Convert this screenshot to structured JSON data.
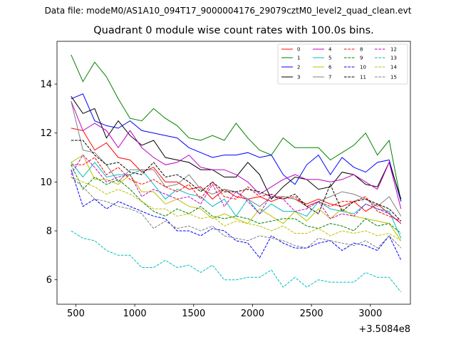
{
  "suptitle": "Data file: modeM0/AS1A10_094T17_9000004176_29079cztM0_level2_quad_clean.evt",
  "chart_data": {
    "type": "line",
    "title": "Quadrant 0 module wise count rates with 100.0s bins.",
    "xlabel": "",
    "ylabel": "",
    "x_offset_label": "+3.5084e8",
    "xlim": [
      340,
      3340
    ],
    "ylim": [
      5.0,
      15.75
    ],
    "xticks": [
      500,
      1000,
      1500,
      2000,
      2500,
      3000
    ],
    "xtick_labels": [
      "500",
      "1000",
      "1500",
      "2000",
      "2500",
      "3000"
    ],
    "yticks": [
      6,
      8,
      10,
      12,
      14
    ],
    "ytick_labels": [
      "6",
      "8",
      "10",
      "12",
      "14"
    ],
    "grid": false,
    "legend_position": "top-right",
    "x": [
      460,
      560,
      660,
      760,
      860,
      960,
      1060,
      1160,
      1260,
      1360,
      1460,
      1560,
      1660,
      1760,
      1860,
      1960,
      2060,
      2160,
      2260,
      2360,
      2460,
      2560,
      2660,
      2760,
      2860,
      2960,
      3060,
      3160,
      3260
    ],
    "series": [
      {
        "name": "0",
        "color": "#ff0000",
        "dash": "solid",
        "values": [
          12.2,
          12.1,
          11.3,
          11.6,
          11.0,
          10.9,
          10.4,
          10.6,
          10.0,
          10.0,
          9.7,
          9.8,
          9.3,
          9.7,
          9.4,
          9.3,
          9.4,
          9.2,
          9.4,
          9.3,
          9.1,
          9.3,
          9.1,
          9.0,
          9.2,
          8.8,
          9.1,
          8.7,
          8.3
        ]
      },
      {
        "name": "1",
        "color": "#008000",
        "dash": "solid",
        "values": [
          15.2,
          14.1,
          14.9,
          14.3,
          13.4,
          12.6,
          12.5,
          13.0,
          12.6,
          12.3,
          11.8,
          11.7,
          11.9,
          11.7,
          12.4,
          11.8,
          11.3,
          11.1,
          11.8,
          11.4,
          11.4,
          11.4,
          10.9,
          11.2,
          11.5,
          12.0,
          11.1,
          11.7,
          9.2
        ]
      },
      {
        "name": "2",
        "color": "#0000ff",
        "dash": "solid",
        "values": [
          13.4,
          13.6,
          12.5,
          12.3,
          12.2,
          12.5,
          12.1,
          12.0,
          11.9,
          11.8,
          11.4,
          11.2,
          11.0,
          11.1,
          11.1,
          11.2,
          11.0,
          11.1,
          10.3,
          9.9,
          10.7,
          11.1,
          10.3,
          11.0,
          10.6,
          10.4,
          10.8,
          10.9,
          9.2
        ]
      },
      {
        "name": "3",
        "color": "#000000",
        "dash": "solid",
        "values": [
          13.5,
          12.8,
          13.0,
          11.8,
          12.5,
          11.9,
          11.5,
          11.7,
          11.0,
          10.9,
          10.8,
          10.5,
          10.5,
          10.2,
          10.2,
          10.8,
          10.3,
          9.3,
          9.8,
          10.2,
          10.1,
          9.7,
          9.8,
          10.4,
          10.3,
          9.9,
          9.8,
          10.8,
          9.3
        ]
      },
      {
        "name": "4",
        "color": "#bf00bf",
        "dash": "solid",
        "values": [
          13.3,
          12.1,
          12.4,
          12.1,
          11.4,
          12.1,
          11.4,
          11.0,
          10.7,
          10.8,
          11.1,
          10.6,
          10.5,
          10.5,
          10.3,
          10.0,
          9.5,
          9.8,
          10.1,
          10.3,
          10.1,
          10.1,
          10.0,
          10.1,
          10.3,
          10.0,
          9.7,
          10.8,
          8.9
        ]
      },
      {
        "name": "5",
        "color": "#00bfbf",
        "dash": "solid",
        "values": [
          10.8,
          10.2,
          10.8,
          10.2,
          10.3,
          10.3,
          10.5,
          9.9,
          9.3,
          9.7,
          9.5,
          9.4,
          9.0,
          9.3,
          8.6,
          9.3,
          8.7,
          9.1,
          8.8,
          8.8,
          8.6,
          9.2,
          8.9,
          8.8,
          8.7,
          9.1,
          8.9,
          8.8,
          7.7
        ]
      },
      {
        "name": "6",
        "color": "#bfbf00",
        "dash": "solid",
        "values": [
          10.8,
          11.1,
          10.1,
          10.1,
          9.9,
          10.3,
          9.6,
          9.6,
          9.1,
          9.3,
          9.0,
          8.9,
          8.5,
          8.7,
          8.5,
          8.3,
          8.9,
          8.6,
          8.3,
          8.8,
          8.4,
          8.9,
          8.5,
          8.9,
          8.6,
          8.5,
          8.4,
          8.3,
          7.6
        ]
      },
      {
        "name": "7",
        "color": "#808080",
        "dash": "solid",
        "values": [
          13.3,
          11.3,
          11.2,
          10.7,
          10.0,
          10.5,
          10.5,
          10.5,
          9.8,
          9.9,
          10.3,
          9.7,
          9.5,
          9.7,
          9.6,
          9.3,
          9.0,
          9.4,
          9.4,
          9.3,
          9.0,
          9.2,
          9.4,
          9.6,
          9.5,
          9.3,
          9.0,
          9.4,
          8.6
        ]
      },
      {
        "name": "8",
        "color": "#ff0000",
        "dash": "dashed",
        "values": [
          10.7,
          10.7,
          11.0,
          10.3,
          10.6,
          10.1,
          9.9,
          10.1,
          9.8,
          9.6,
          9.9,
          9.3,
          10.0,
          9.4,
          9.3,
          9.8,
          9.4,
          9.5,
          9.3,
          9.4,
          9.0,
          9.2,
          9.0,
          9.2,
          9.2,
          9.4,
          8.8,
          8.6,
          8.4
        ]
      },
      {
        "name": "9",
        "color": "#008000",
        "dash": "dashed",
        "values": [
          10.7,
          9.7,
          10.2,
          9.9,
          10.1,
          9.7,
          9.2,
          8.8,
          8.6,
          8.9,
          8.7,
          9.0,
          8.6,
          8.5,
          8.6,
          8.5,
          8.3,
          8.4,
          8.5,
          8.5,
          8.2,
          8.1,
          8.3,
          8.2,
          8.0,
          8.5,
          8.2,
          8.3,
          7.9
        ]
      },
      {
        "name": "10",
        "color": "#0000ff",
        "dash": "dashed",
        "values": [
          10.5,
          9.0,
          9.3,
          8.9,
          9.2,
          9.0,
          8.8,
          8.6,
          8.5,
          8.0,
          8.0,
          7.8,
          8.1,
          8.0,
          7.6,
          7.5,
          6.9,
          7.8,
          7.5,
          7.3,
          7.3,
          7.5,
          7.6,
          7.2,
          7.5,
          7.4,
          7.2,
          7.8,
          6.8
        ]
      },
      {
        "name": "11",
        "color": "#000000",
        "dash": "dashed",
        "values": [
          11.7,
          11.7,
          11.1,
          10.7,
          10.8,
          10.4,
          10.3,
          10.8,
          10.2,
          10.3,
          10.0,
          9.6,
          10.0,
          9.6,
          9.6,
          9.7,
          9.6,
          9.4,
          9.3,
          9.5,
          9.0,
          8.7,
          9.9,
          8.8,
          9.2,
          9.3,
          9.1,
          8.9,
          8.4
        ]
      },
      {
        "name": "12",
        "color": "#bf00bf",
        "dash": "dashed",
        "values": [
          10.3,
          11.1,
          10.6,
          10.0,
          10.2,
          10.3,
          9.4,
          9.7,
          9.5,
          9.3,
          9.4,
          9.1,
          9.9,
          9.0,
          9.6,
          9.2,
          8.7,
          9.5,
          9.3,
          8.8,
          8.9,
          9.2,
          8.5,
          8.7,
          8.6,
          9.1,
          8.9,
          8.7,
          8.3
        ]
      },
      {
        "name": "13",
        "color": "#00bfbf",
        "dash": "dashed",
        "values": [
          8.0,
          7.7,
          7.6,
          7.2,
          7.0,
          7.0,
          6.5,
          6.5,
          6.8,
          6.5,
          6.6,
          6.3,
          6.6,
          6.0,
          6.0,
          6.1,
          6.1,
          6.4,
          5.7,
          6.1,
          5.7,
          6.0,
          5.9,
          5.9,
          5.9,
          6.3,
          6.1,
          6.1,
          5.5
        ]
      },
      {
        "name": "14",
        "color": "#bfbf00",
        "dash": "dashed",
        "values": [
          10.2,
          10.0,
          9.8,
          9.5,
          9.7,
          9.5,
          9.2,
          8.9,
          8.9,
          8.6,
          8.7,
          8.5,
          8.6,
          8.2,
          8.4,
          8.3,
          8.2,
          8.0,
          8.2,
          7.9,
          7.9,
          8.1,
          7.8,
          8.0,
          7.9,
          8.0,
          7.8,
          7.9,
          7.6
        ]
      },
      {
        "name": "15",
        "color": "#808080",
        "dash": "dashed",
        "values": [
          10.2,
          9.8,
          9.3,
          9.2,
          9.0,
          8.9,
          8.7,
          8.1,
          8.4,
          8.1,
          8.2,
          8.0,
          8.2,
          7.8,
          7.7,
          7.6,
          7.8,
          7.7,
          7.6,
          7.4,
          7.3,
          7.7,
          7.6,
          7.5,
          7.4,
          7.6,
          7.3,
          7.8,
          7.3
        ]
      }
    ]
  }
}
